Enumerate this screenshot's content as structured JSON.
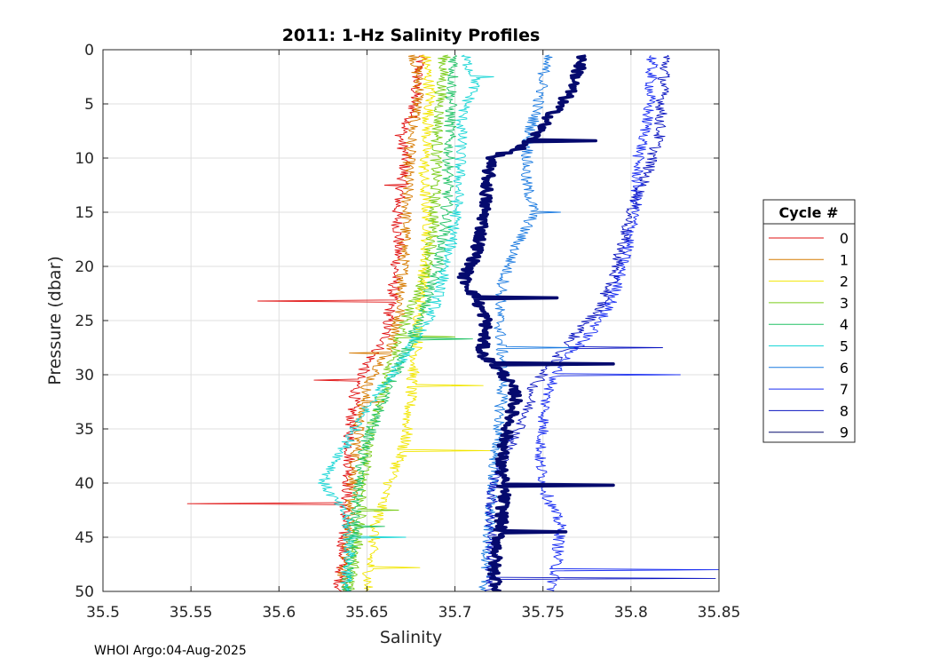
{
  "chart_data": {
    "type": "line",
    "title": "2011: 1-Hz Salinity Profiles",
    "xlabel": "Salinity",
    "ylabel": "Pressure (dbar)",
    "xlim": [
      35.5,
      35.85
    ],
    "ylim": [
      0,
      50
    ],
    "y_reversed": true,
    "grid": true,
    "x_ticks": [
      "35.5",
      "35.55",
      "35.6",
      "35.65",
      "35.7",
      "35.75",
      "35.8",
      "35.85"
    ],
    "y_ticks": [
      "0",
      "5",
      "10",
      "15",
      "20",
      "25",
      "30",
      "35",
      "40",
      "45",
      "50"
    ],
    "legend": {
      "title": "Cycle #",
      "placement": "right"
    },
    "series": [
      {
        "name": "0",
        "color": "#e01010",
        "points": [
          [
            35.681,
            0.5
          ],
          [
            35.678,
            3
          ],
          [
            35.676,
            6
          ],
          [
            35.669,
            8
          ],
          [
            35.672,
            10
          ],
          [
            35.67,
            12.5
          ],
          [
            35.667,
            15
          ],
          [
            35.668,
            18
          ],
          [
            35.666,
            21
          ],
          [
            35.664,
            23.2
          ],
          [
            35.662,
            25
          ],
          [
            35.66,
            27
          ],
          [
            35.652,
            28.5
          ],
          [
            35.645,
            30.5
          ],
          [
            35.642,
            33
          ],
          [
            35.64,
            36
          ],
          [
            35.64,
            39
          ],
          [
            35.638,
            41.9
          ],
          [
            35.637,
            44
          ],
          [
            35.636,
            47
          ],
          [
            35.634,
            50
          ]
        ],
        "spikes": [
          [
            23.2,
            35.588
          ],
          [
            41.9,
            35.548
          ],
          [
            12.5,
            35.66
          ],
          [
            30.5,
            35.62
          ]
        ]
      },
      {
        "name": "1",
        "color": "#d67a00",
        "points": [
          [
            35.677,
            0.5
          ],
          [
            35.68,
            4
          ],
          [
            35.676,
            7
          ],
          [
            35.674,
            10
          ],
          [
            35.673,
            13
          ],
          [
            35.672,
            16
          ],
          [
            35.671,
            19
          ],
          [
            35.67,
            22
          ],
          [
            35.668,
            25
          ],
          [
            35.664,
            27.5
          ],
          [
            35.658,
            29
          ],
          [
            35.65,
            31
          ],
          [
            35.646,
            34
          ],
          [
            35.644,
            37
          ],
          [
            35.642,
            40
          ],
          [
            35.64,
            43
          ],
          [
            35.639,
            46
          ],
          [
            35.637,
            48
          ],
          [
            35.636,
            50
          ]
        ],
        "spikes": [
          [
            28,
            35.64
          ],
          [
            32.5,
            35.66
          ]
        ]
      },
      {
        "name": "2",
        "color": "#f2e600",
        "points": [
          [
            35.683,
            0.5
          ],
          [
            35.686,
            4
          ],
          [
            35.684,
            8
          ],
          [
            35.682,
            12
          ],
          [
            35.685,
            16
          ],
          [
            35.683,
            20
          ],
          [
            35.68,
            24
          ],
          [
            35.678,
            28
          ],
          [
            35.676,
            30
          ],
          [
            35.674,
            33
          ],
          [
            35.672,
            36
          ],
          [
            35.668,
            38
          ],
          [
            35.66,
            41
          ],
          [
            35.655,
            44
          ],
          [
            35.652,
            47
          ],
          [
            35.65,
            50
          ]
        ],
        "spikes": [
          [
            37,
            35.72
          ],
          [
            31,
            35.716
          ],
          [
            47.8,
            35.68
          ]
        ]
      },
      {
        "name": "3",
        "color": "#7acc1a",
        "points": [
          [
            35.694,
            0.5
          ],
          [
            35.692,
            4
          ],
          [
            35.69,
            8
          ],
          [
            35.689,
            12
          ],
          [
            35.688,
            16
          ],
          [
            35.686,
            19
          ],
          [
            35.68,
            22
          ],
          [
            35.672,
            25
          ],
          [
            35.666,
            28
          ],
          [
            35.66,
            31
          ],
          [
            35.654,
            34
          ],
          [
            35.65,
            37
          ],
          [
            35.648,
            40
          ],
          [
            35.646,
            43
          ],
          [
            35.644,
            46
          ],
          [
            35.64,
            50
          ]
        ],
        "spikes": [
          [
            26.5,
            35.7
          ],
          [
            42.5,
            35.668
          ]
        ]
      },
      {
        "name": "4",
        "color": "#22c266",
        "points": [
          [
            35.7,
            0.5
          ],
          [
            35.698,
            4
          ],
          [
            35.697,
            8
          ],
          [
            35.696,
            12
          ],
          [
            35.695,
            16
          ],
          [
            35.69,
            20
          ],
          [
            35.682,
            24
          ],
          [
            35.672,
            28
          ],
          [
            35.662,
            31
          ],
          [
            35.655,
            34
          ],
          [
            35.648,
            37
          ],
          [
            35.645,
            40
          ],
          [
            35.643,
            43
          ],
          [
            35.641,
            46
          ],
          [
            35.638,
            50
          ]
        ],
        "spikes": [
          [
            26.7,
            35.71
          ],
          [
            44,
            35.66
          ]
        ]
      },
      {
        "name": "5",
        "color": "#1ad6d6",
        "points": [
          [
            35.705,
            0.5
          ],
          [
            35.712,
            3
          ],
          [
            35.704,
            6
          ],
          [
            35.703,
            10
          ],
          [
            35.702,
            13
          ],
          [
            35.7,
            16
          ],
          [
            35.695,
            20
          ],
          [
            35.688,
            24
          ],
          [
            35.676,
            27
          ],
          [
            35.664,
            30
          ],
          [
            35.65,
            33
          ],
          [
            35.64,
            36
          ],
          [
            35.625,
            40
          ],
          [
            35.638,
            43
          ],
          [
            35.64,
            46
          ],
          [
            35.638,
            50
          ]
        ],
        "spikes": [
          [
            2.5,
            35.722
          ],
          [
            45,
            35.672
          ]
        ]
      },
      {
        "name": "6",
        "color": "#1a7ae0",
        "points": [
          [
            35.752,
            0.5
          ],
          [
            35.749,
            4
          ],
          [
            35.742,
            8
          ],
          [
            35.74,
            12
          ],
          [
            35.745,
            15
          ],
          [
            35.735,
            18
          ],
          [
            35.728,
            21
          ],
          [
            35.725,
            24
          ],
          [
            35.726,
            27
          ],
          [
            35.728,
            30
          ],
          [
            35.726,
            33
          ],
          [
            35.724,
            36
          ],
          [
            35.722,
            39
          ],
          [
            35.72,
            42
          ],
          [
            35.719,
            45
          ],
          [
            35.718,
            48
          ],
          [
            35.717,
            50
          ]
        ],
        "spikes": [
          [
            15,
            35.76
          ],
          [
            27.5,
            35.77
          ]
        ]
      },
      {
        "name": "7",
        "color": "#1a2ef2",
        "points": [
          [
            35.812,
            0.5
          ],
          [
            35.811,
            4
          ],
          [
            35.808,
            8
          ],
          [
            35.804,
            10
          ],
          [
            35.803,
            14
          ],
          [
            35.8,
            17
          ],
          [
            35.795,
            20
          ],
          [
            35.79,
            23
          ],
          [
            35.778,
            26
          ],
          [
            35.76,
            29
          ],
          [
            35.752,
            32
          ],
          [
            35.75,
            35
          ],
          [
            35.748,
            38
          ],
          [
            35.752,
            41
          ],
          [
            35.76,
            44
          ],
          [
            35.758,
            47
          ],
          [
            35.755,
            50
          ]
        ],
        "spikes": [
          [
            30,
            35.828
          ],
          [
            48,
            35.85
          ]
        ]
      },
      {
        "name": "8",
        "color": "#0a14c0",
        "points": [
          [
            35.82,
            0.5
          ],
          [
            35.818,
            4
          ],
          [
            35.816,
            8
          ],
          [
            35.81,
            11
          ],
          [
            35.8,
            15
          ],
          [
            35.795,
            18
          ],
          [
            35.79,
            21
          ],
          [
            35.782,
            24
          ],
          [
            35.77,
            26
          ],
          [
            35.76,
            28
          ],
          [
            35.745,
            31
          ],
          [
            35.74,
            34
          ],
          [
            35.73,
            37
          ],
          [
            35.722,
            40
          ],
          [
            35.72,
            43
          ],
          [
            35.721,
            46
          ],
          [
            35.72,
            50
          ]
        ],
        "spikes": [
          [
            27.5,
            35.818
          ],
          [
            48.8,
            35.848
          ]
        ]
      },
      {
        "name": "9",
        "color": "#050a6e",
        "points": [
          [
            35.773,
            0.5
          ],
          [
            35.77,
            2
          ],
          [
            35.765,
            4
          ],
          [
            35.755,
            6
          ],
          [
            35.745,
            8
          ],
          [
            35.738,
            9
          ],
          [
            35.72,
            10
          ],
          [
            35.718,
            13
          ],
          [
            35.716,
            16
          ],
          [
            35.712,
            19
          ],
          [
            35.705,
            21
          ],
          [
            35.712,
            23
          ],
          [
            35.718,
            25
          ],
          [
            35.716,
            27
          ],
          [
            35.715,
            28
          ],
          [
            35.728,
            30
          ],
          [
            35.735,
            32
          ],
          [
            35.73,
            35
          ],
          [
            35.726,
            38
          ],
          [
            35.728,
            41
          ],
          [
            35.726,
            44
          ],
          [
            35.724,
            46
          ],
          [
            35.722,
            48
          ],
          [
            35.725,
            50
          ]
        ],
        "spikes": [
          [
            8.4,
            35.78
          ],
          [
            22.9,
            35.758
          ],
          [
            29,
            35.79
          ],
          [
            40.2,
            35.79
          ],
          [
            44.5,
            35.763
          ]
        ]
      }
    ]
  },
  "footer": {
    "text": "WHOI Argo:04-Aug-2025"
  }
}
